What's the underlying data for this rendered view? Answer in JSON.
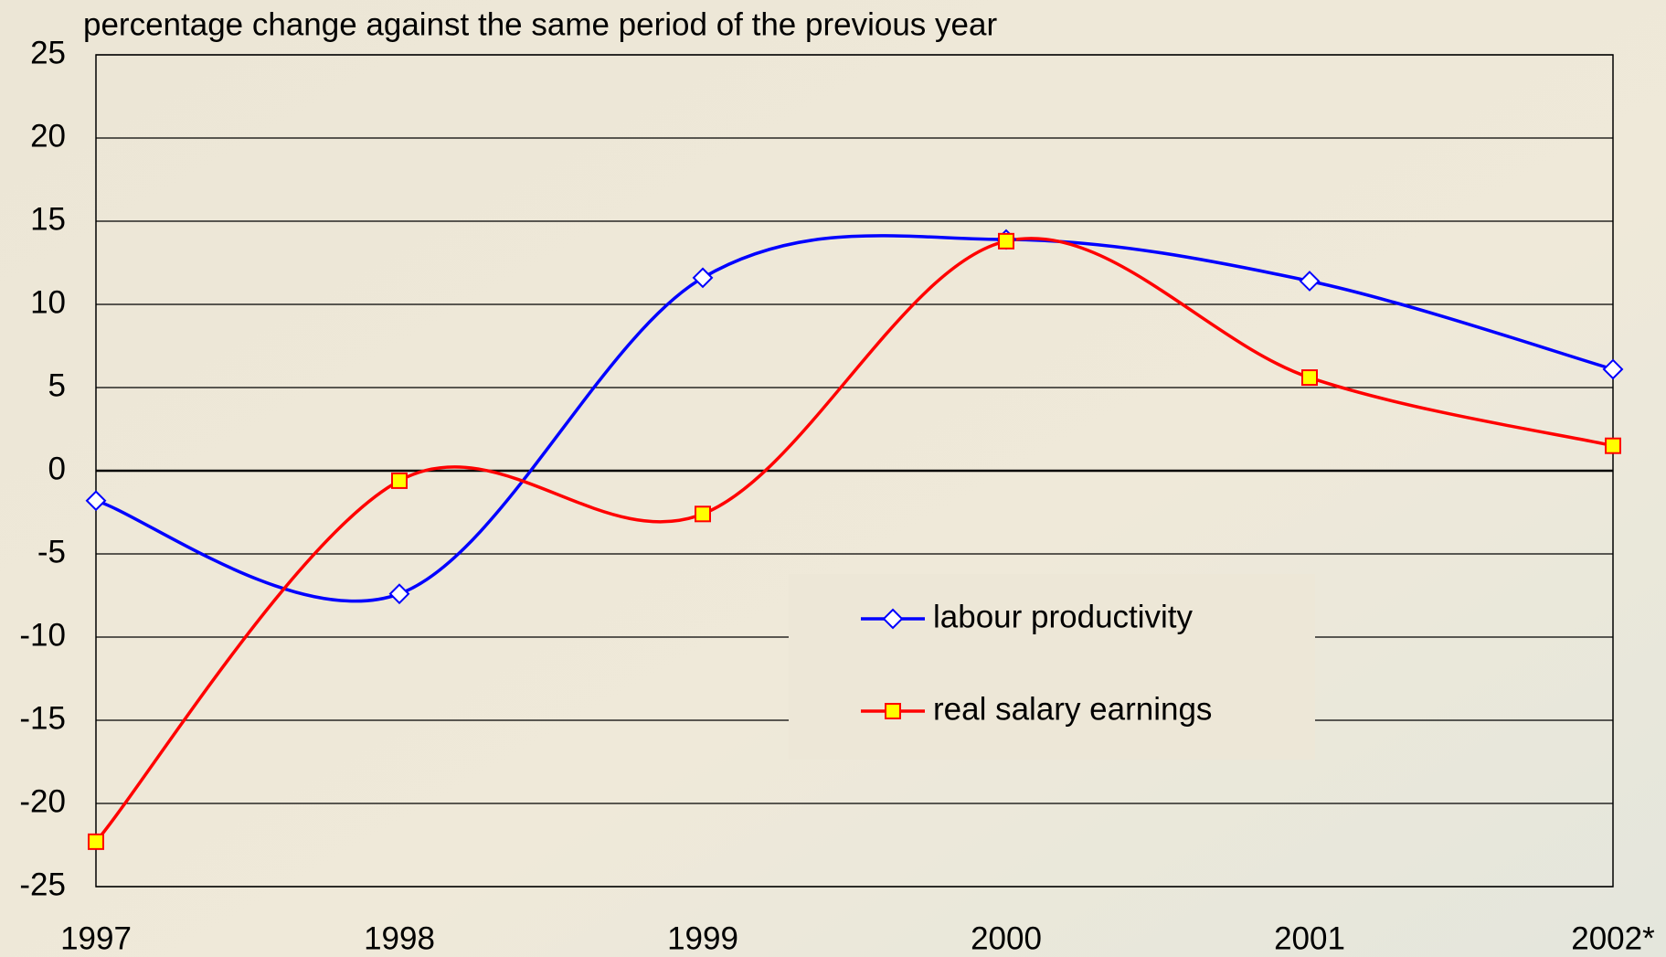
{
  "chart_data": {
    "type": "line",
    "title": "percentage change against the same period of the previous year",
    "categories": [
      "1997",
      "1998",
      "1999",
      "2000",
      "2001",
      "2002*"
    ],
    "series": [
      {
        "name": "labour productivity",
        "color": "#0000ff",
        "marker": "diamond",
        "values": [
          -1.8,
          -7.4,
          11.6,
          13.9,
          11.4,
          6.1
        ]
      },
      {
        "name": "real salary earnings",
        "color": "#ff0000",
        "marker": "square",
        "values": [
          -22.3,
          -0.6,
          -2.6,
          13.8,
          5.6,
          1.5
        ]
      }
    ],
    "ylim": [
      -25,
      25
    ],
    "yticks": [
      -25,
      -20,
      -15,
      -10,
      -5,
      0,
      5,
      10,
      15,
      20,
      25
    ],
    "grid": true
  }
}
